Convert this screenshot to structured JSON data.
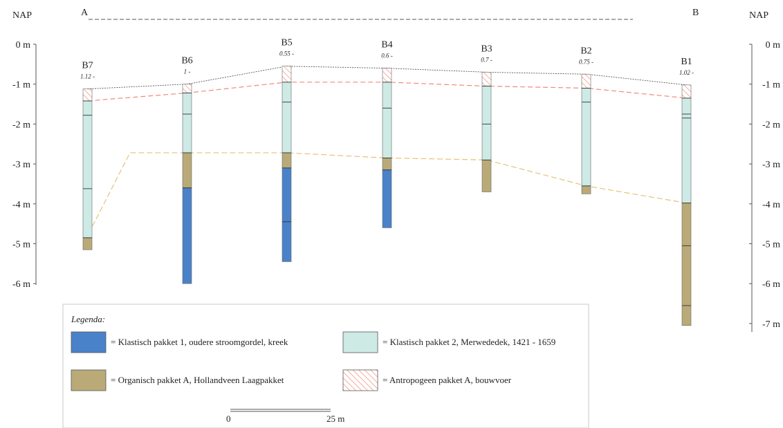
{
  "section": {
    "start_label": "A",
    "end_label": "B"
  },
  "axis": {
    "title": "NAP",
    "unit": "m",
    "ticks": [
      0,
      -1,
      -2,
      -3,
      -4,
      -5,
      -6,
      -7
    ],
    "left_labels": [
      "0 m",
      "-1 m",
      "-2 m",
      "-3 m",
      "-4 m",
      "-5 m",
      "-6 m"
    ],
    "right_labels": [
      "0 m",
      "-1 m",
      "-2 m",
      "-3 m",
      "-4 m",
      "-5 m",
      "-6 m",
      "-7 m"
    ],
    "range": [
      0,
      -7
    ]
  },
  "colors": {
    "klastisch1": "#4a82c9",
    "klastisch2": "#cdeae5",
    "organisch": "#b9aa78",
    "antropogeen": "#f08a78",
    "line_top": "#555555",
    "line_bouwvoer": "#f08a78",
    "line_veen": "#e8c07a"
  },
  "boreholes": [
    {
      "name": "B7",
      "elev_label": "1.12 -",
      "top": -1.12,
      "layers": [
        {
          "type": "antropogeen",
          "from": -1.12,
          "to": -1.42
        },
        {
          "type": "klastisch2",
          "from": -1.42,
          "to": -4.85
        },
        {
          "type": "organisch",
          "from": -4.85,
          "to": -5.15
        }
      ],
      "marks": [
        -1.42,
        -1.78,
        -3.62,
        -4.85
      ]
    },
    {
      "name": "B6",
      "elev_label": "1 -",
      "top": -1.0,
      "layers": [
        {
          "type": "antropogeen",
          "from": -1.0,
          "to": -1.22
        },
        {
          "type": "klastisch2",
          "from": -1.22,
          "to": -2.72
        },
        {
          "type": "organisch",
          "from": -2.72,
          "to": -3.6
        },
        {
          "type": "klastisch1",
          "from": -3.6,
          "to": -6.0
        }
      ],
      "marks": [
        -1.22,
        -1.75,
        -2.72,
        -3.6
      ]
    },
    {
      "name": "B5",
      "elev_label": "0.55 -",
      "top": -0.55,
      "layers": [
        {
          "type": "antropogeen",
          "from": -0.55,
          "to": -0.95
        },
        {
          "type": "klastisch2",
          "from": -0.95,
          "to": -2.72
        },
        {
          "type": "organisch",
          "from": -2.72,
          "to": -3.1
        },
        {
          "type": "klastisch1",
          "from": -3.1,
          "to": -5.45
        }
      ],
      "marks": [
        -0.95,
        -1.45,
        -2.72,
        -3.1,
        -4.45
      ]
    },
    {
      "name": "B4",
      "elev_label": "0.6 -",
      "top": -0.6,
      "layers": [
        {
          "type": "antropogeen",
          "from": -0.6,
          "to": -0.95
        },
        {
          "type": "klastisch2",
          "from": -0.95,
          "to": -2.85
        },
        {
          "type": "organisch",
          "from": -2.85,
          "to": -3.15
        },
        {
          "type": "klastisch1",
          "from": -3.15,
          "to": -4.6
        }
      ],
      "marks": [
        -0.95,
        -1.6,
        -2.85,
        -3.15
      ]
    },
    {
      "name": "B3",
      "elev_label": "0.7 -",
      "top": -0.7,
      "layers": [
        {
          "type": "antropogeen",
          "from": -0.7,
          "to": -1.05
        },
        {
          "type": "klastisch2",
          "from": -1.05,
          "to": -2.9
        },
        {
          "type": "organisch",
          "from": -2.9,
          "to": -3.7
        }
      ],
      "marks": [
        -1.05,
        -2.0,
        -2.9
      ]
    },
    {
      "name": "B2",
      "elev_label": "0.75 -",
      "top": -0.75,
      "layers": [
        {
          "type": "antropogeen",
          "from": -0.75,
          "to": -1.1
        },
        {
          "type": "klastisch2",
          "from": -1.1,
          "to": -3.55
        },
        {
          "type": "organisch",
          "from": -3.55,
          "to": -3.75
        }
      ],
      "marks": [
        -1.1,
        -1.45,
        -3.55
      ]
    },
    {
      "name": "B1",
      "elev_label": "1.02 -",
      "top": -1.02,
      "layers": [
        {
          "type": "antropogeen",
          "from": -1.02,
          "to": -1.35
        },
        {
          "type": "klastisch2",
          "from": -1.35,
          "to": -3.98
        },
        {
          "type": "organisch",
          "from": -3.98,
          "to": -7.05
        }
      ],
      "marks": [
        -1.35,
        -1.75,
        -1.85,
        -3.98,
        -5.05,
        -6.55
      ]
    }
  ],
  "legend": {
    "title": "Legenda:",
    "items": [
      {
        "type": "klastisch1",
        "label": "= Klastisch pakket 1, oudere stroomgordel, kreek"
      },
      {
        "type": "klastisch2",
        "label": "= Klastisch pakket 2, Merwededek, 1421 - 1659"
      },
      {
        "type": "organisch",
        "label": "= Organisch pakket A, Hollandveen Laagpakket"
      },
      {
        "type": "antropogeen",
        "label": "= Antropogeen pakket A, bouwvoer"
      }
    ]
  },
  "scalebar": {
    "start_label": "0",
    "end_label": "25 m",
    "length": 25,
    "unit": "m"
  }
}
